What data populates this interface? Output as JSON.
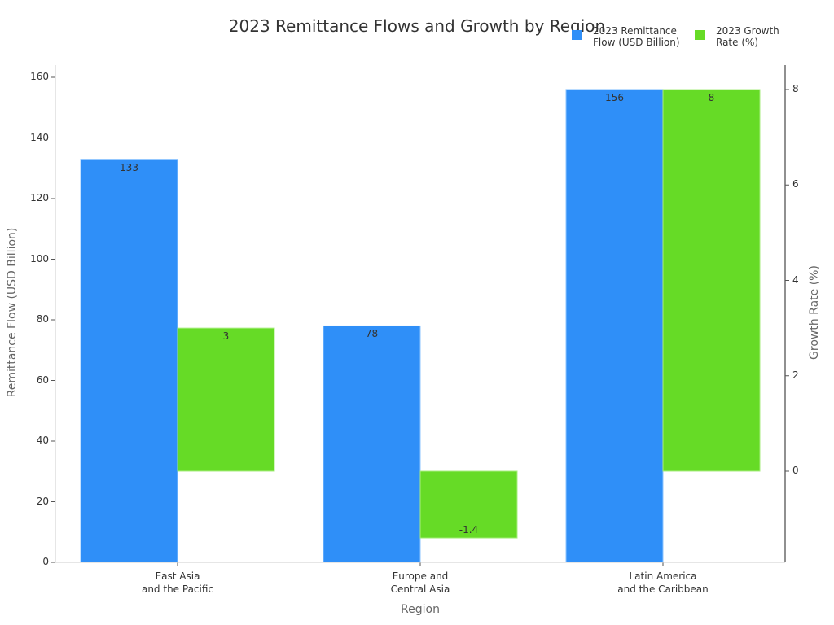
{
  "chart_data": {
    "type": "bar",
    "title": "2023 Remittance Flows and Growth by Region",
    "categories": [
      "East Asia\nand the Pacific",
      "Europe and\nCentral Asia",
      "Latin America\nand the Caribbean"
    ],
    "category_lines": [
      [
        "East Asia",
        "and the Pacific"
      ],
      [
        "Europe and",
        "Central Asia"
      ],
      [
        "Latin America",
        "and the Caribbean"
      ]
    ],
    "series": [
      {
        "name": "2023 Remittance Flow (USD Billion)",
        "axis": "left",
        "color": "#2f8ff8",
        "values": [
          133,
          78,
          156
        ],
        "labels": [
          "133",
          "78",
          "156"
        ]
      },
      {
        "name": "2023 Growth Rate (%)",
        "axis": "right",
        "color": "#66db26",
        "values": [
          3,
          -1.4,
          8
        ],
        "labels": [
          "3",
          "-1.4",
          "8"
        ]
      }
    ],
    "xlabel": "Region",
    "ylabel": "Remittance Flow (USD Billion)",
    "ylabel_right": "Growth Rate (%)",
    "ylim": [
      0,
      164
    ],
    "ylim_right": [
      -1.9,
      8.4
    ],
    "yticks": [
      0,
      20,
      40,
      60,
      80,
      100,
      120,
      140,
      160
    ],
    "yticks_right": [
      0,
      2,
      4,
      6,
      8
    ],
    "grid": false,
    "legend_position": "top-right"
  },
  "legend": {
    "items": [
      {
        "line1": "2023 Remittance",
        "line2": "Flow (USD Billion)",
        "color": "#2f8ff8"
      },
      {
        "line1": "2023 Growth",
        "line2": "Rate (%)",
        "color": "#66db26"
      }
    ]
  }
}
